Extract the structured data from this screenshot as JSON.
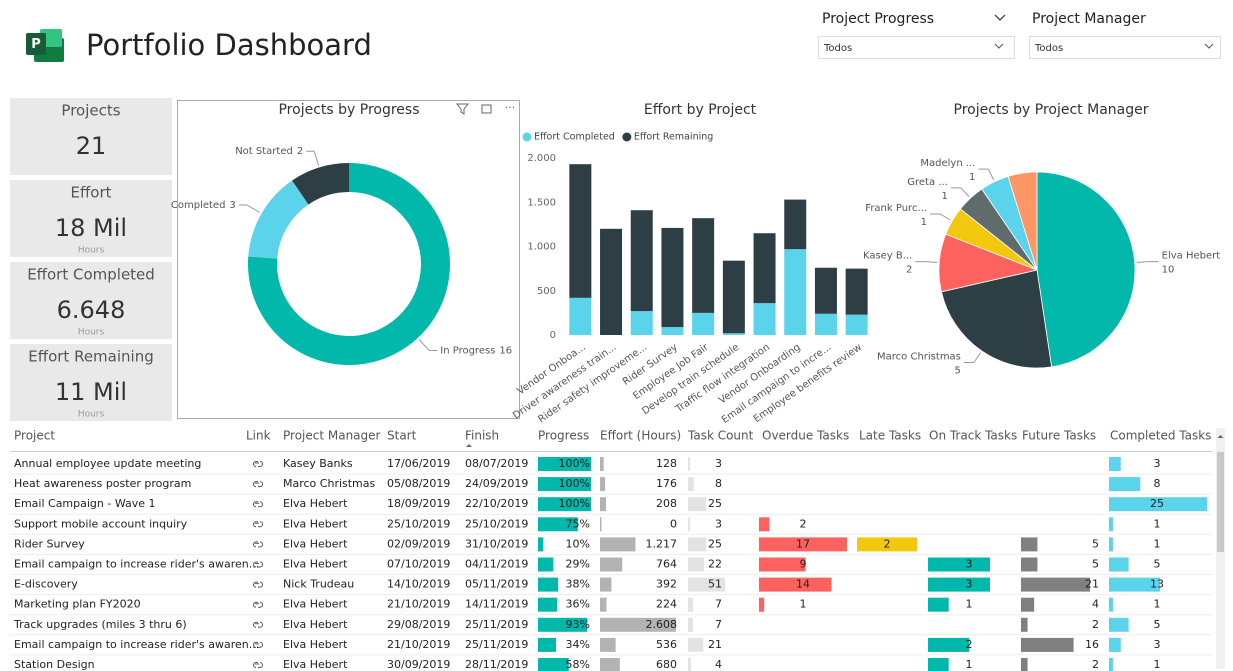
{
  "header": {
    "title": "Portfolio Dashboard"
  },
  "filters": [
    {
      "label": "Project Progress",
      "value": "Todos"
    },
    {
      "label": "Project Manager",
      "value": "Todos"
    }
  ],
  "cards": [
    {
      "title": "Projects",
      "value": 21
    },
    {
      "title": "Effort",
      "value": "18 Mil",
      "unit": "Hours"
    },
    {
      "title": "Effort Completed",
      "value": "6.648",
      "unit": "Hours"
    },
    {
      "title": "Effort Remaining",
      "value": "11 Mil",
      "unit": "Hours"
    }
  ],
  "charts": [
    {
      "type": "donut",
      "title": "Projects by Progress",
      "categories": [
        "In Progress",
        "Completed",
        "Not Started"
      ],
      "values": [
        16,
        3,
        2
      ],
      "colors": [
        "#01b8aa",
        "#5bd3ea",
        "#2d3e44"
      ]
    },
    {
      "type": "stacked_bar",
      "title": "Effort by Project",
      "categories": [
        "Vendor Onboa...",
        "Driver awareness train...",
        "Rider safety improveme...",
        "Rider Survey",
        "Employee Job Fair",
        "Develop train schedule",
        "Traffic flow integration",
        "Vendor Onboarding",
        "Email campaign to incre...",
        "Employee benefits review"
      ],
      "series": [
        {
          "name": "Effort Completed",
          "color": "#5bd3ea",
          "values": [
            420,
            0,
            270,
            90,
            250,
            20,
            360,
            970,
            240,
            230
          ]
        },
        {
          "name": "Effort Remaining",
          "color": "#2d3e44",
          "values": [
            1510,
            1200,
            1140,
            1120,
            1070,
            820,
            790,
            560,
            520,
            520
          ]
        }
      ],
      "ylim": [
        0,
        2000
      ],
      "yticks": [
        0,
        500,
        {
          "value": 1000,
          "label": "1.000"
        },
        {
          "value": 1500,
          "label": "1.500"
        },
        {
          "value": 2000,
          "label": "2.000"
        }
      ],
      "legend": "top-left"
    },
    {
      "type": "pie",
      "title": "Projects by Project Manager",
      "categories": [
        "Elva Hebert",
        "Marco Christmas",
        "Kasey B...",
        "Frank Purc...",
        "Greta ...",
        "Madelyn ...",
        null
      ],
      "values": [
        10,
        5,
        2,
        1,
        1,
        1,
        1
      ],
      "colors": [
        "#01b8aa",
        "#2d3e44",
        "#fd625e",
        "#f2c80f",
        "#5f6b6d",
        "#5bd3ea",
        "#fe9666"
      ]
    }
  ],
  "table": {
    "columns": [
      "Project",
      "Link",
      "Project Manager",
      "Start",
      "Finish",
      "Progress",
      "Effort (Hours)",
      "Task Count",
      "Overdue Tasks",
      "Late Tasks",
      "On Track Tasks",
      "Future Tasks",
      "Completed Tasks"
    ],
    "rows": [
      {
        "project": "Annual employee update meeting",
        "manager": "Kasey Banks",
        "start": "17/06/2019",
        "finish": "08/07/2019",
        "progress": {
          "value": 100,
          "label": "100%"
        },
        "effort": 128,
        "task_count": 3,
        "overdue": null,
        "late": null,
        "on_track": null,
        "future": null,
        "completed": 3
      },
      {
        "project": "Heat awareness poster program",
        "manager": "Marco Christmas",
        "start": "05/08/2019",
        "finish": "24/09/2019",
        "progress": {
          "value": 100,
          "label": "100%"
        },
        "effort": 176,
        "task_count": 8,
        "overdue": null,
        "late": null,
        "on_track": null,
        "future": null,
        "completed": 8
      },
      {
        "project": "Email Campaign - Wave 1",
        "manager": "Elva Hebert",
        "start": "18/09/2019",
        "finish": "22/10/2019",
        "progress": {
          "value": 100,
          "label": "100%"
        },
        "effort": 208,
        "task_count": 25,
        "overdue": null,
        "late": null,
        "on_track": null,
        "future": null,
        "completed": 25
      },
      {
        "project": "Support mobile account inquiry",
        "manager": "Elva Hebert",
        "start": "25/10/2019",
        "finish": "25/10/2019",
        "progress": {
          "value": 75,
          "label": "75%"
        },
        "effort": 0,
        "task_count": 3,
        "overdue": 2,
        "late": null,
        "on_track": null,
        "future": null,
        "completed": 1
      },
      {
        "project": "Rider Survey",
        "manager": "Elva Hebert",
        "start": "02/09/2019",
        "finish": "31/10/2019",
        "progress": {
          "value": 10,
          "label": "10%"
        },
        "effort": {
          "value": 1217,
          "label": "1.217"
        },
        "task_count": 25,
        "overdue": 17,
        "late": 2,
        "on_track": null,
        "future": 5,
        "completed": 1
      },
      {
        "project": "Email campaign to increase rider's awaren...",
        "manager": "Elva Hebert",
        "start": "07/10/2019",
        "finish": "04/11/2019",
        "progress": {
          "value": 29,
          "label": "29%"
        },
        "effort": 764,
        "task_count": 22,
        "overdue": 9,
        "late": null,
        "on_track": 3,
        "future": 5,
        "completed": 5
      },
      {
        "project": "E-discovery",
        "manager": "Nick Trudeau",
        "start": "14/10/2019",
        "finish": "05/11/2019",
        "progress": {
          "value": 38,
          "label": "38%"
        },
        "effort": 392,
        "task_count": 51,
        "overdue": 14,
        "late": null,
        "on_track": 3,
        "future": 21,
        "completed": 13
      },
      {
        "project": "Marketing plan FY2020",
        "manager": "Elva Hebert",
        "start": "21/10/2019",
        "finish": "14/11/2019",
        "progress": {
          "value": 36,
          "label": "36%"
        },
        "effort": 224,
        "task_count": 7,
        "overdue": 1,
        "late": null,
        "on_track": 1,
        "future": 4,
        "completed": 1
      },
      {
        "project": "Track upgrades (miles 3 thru 6)",
        "manager": "Elva Hebert",
        "start": "29/08/2019",
        "finish": "25/11/2019",
        "progress": {
          "value": 93,
          "label": "93%"
        },
        "effort": {
          "value": 2608,
          "label": "2.608"
        },
        "task_count": 7,
        "overdue": null,
        "late": null,
        "on_track": null,
        "future": 2,
        "completed": 5
      },
      {
        "project": "Email campaign to increase rider's awaren...",
        "manager": "Elva Hebert",
        "start": "21/10/2019",
        "finish": "25/11/2019",
        "progress": {
          "value": 34,
          "label": "34%"
        },
        "effort": 536,
        "task_count": 21,
        "overdue": null,
        "late": null,
        "on_track": 2,
        "future": 16,
        "completed": 3
      },
      {
        "project": "Station Design",
        "manager": "Elva Hebert",
        "start": "30/09/2019",
        "finish": "28/11/2019",
        "progress": {
          "value": 58,
          "label": "58%"
        },
        "effort": 680,
        "task_count": 4,
        "overdue": null,
        "late": null,
        "on_track": 1,
        "future": 2,
        "completed": 1
      }
    ]
  }
}
